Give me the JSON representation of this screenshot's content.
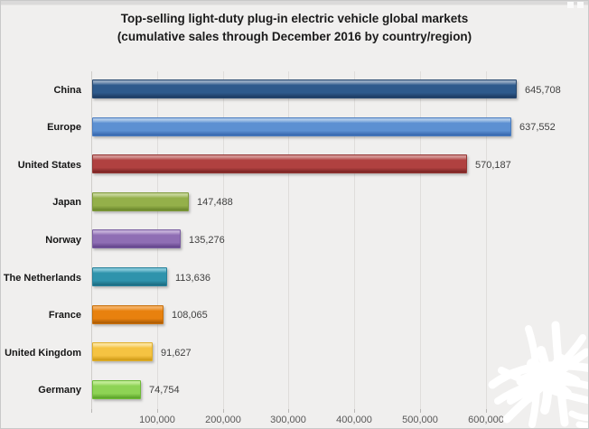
{
  "header": {
    "title_line1": "Top-selling light-duty plug-in electric vehicle global markets",
    "title_line2": "(cumulative sales through December 2016 by country/region)"
  },
  "chart_data": {
    "type": "bar",
    "orientation": "horizontal",
    "title": "Top-selling light-duty plug-in electric vehicle global markets (cumulative sales through December 2016 by country/region)",
    "categories": [
      "China",
      "Europe",
      "United States",
      "Japan",
      "Norway",
      "The Netherlands",
      "France",
      "United Kingdom",
      "Germany"
    ],
    "values": [
      645708,
      637552,
      570187,
      147488,
      135276,
      113636,
      108065,
      91627,
      74754
    ],
    "value_labels": [
      "645,708",
      "637,552",
      "570,187",
      "147,488",
      "135,276",
      "113,636",
      "108,065",
      "91,627",
      "74,754"
    ],
    "x_tick_labels": [
      "100,000",
      "200,000",
      "300,000",
      "400,000",
      "500,000",
      "600,000"
    ],
    "x_tick_values": [
      100000,
      200000,
      300000,
      400000,
      500000,
      600000
    ],
    "xlim": [
      0,
      650000
    ],
    "grid": true,
    "legend": false,
    "bar_styles": [
      {
        "name": "dark-blue",
        "light": "#8FA6C0",
        "main": "#2E5A8C",
        "dark": "#1F3E66",
        "border": "#27486F"
      },
      {
        "name": "light-blue",
        "light": "#A9C6E8",
        "main": "#5C90D2",
        "dark": "#3A6BB0",
        "border": "#4A7CC0"
      },
      {
        "name": "red",
        "light": "#D29391",
        "main": "#B04140",
        "dark": "#7E2726",
        "border": "#943634"
      },
      {
        "name": "olive-green",
        "light": "#C3D394",
        "main": "#94B04A",
        "dark": "#6E8A2E",
        "border": "#7E9A3A"
      },
      {
        "name": "purple",
        "light": "#C0ABD6",
        "main": "#8F6EB4",
        "dark": "#66478E",
        "border": "#795CA0"
      },
      {
        "name": "teal",
        "light": "#7FC4D6",
        "main": "#2F93AC",
        "dark": "#1E6E84",
        "border": "#26809A"
      },
      {
        "name": "orange",
        "light": "#F3AE60",
        "main": "#E8810E",
        "dark": "#B05E06",
        "border": "#C86F08"
      },
      {
        "name": "gold",
        "light": "#FBE298",
        "main": "#F5C342",
        "dark": "#D29E1A",
        "border": "#DFAF2B"
      },
      {
        "name": "light-green",
        "light": "#BEEB92",
        "main": "#8ED355",
        "dark": "#5FA72D",
        "border": "#6FBA38"
      }
    ]
  }
}
